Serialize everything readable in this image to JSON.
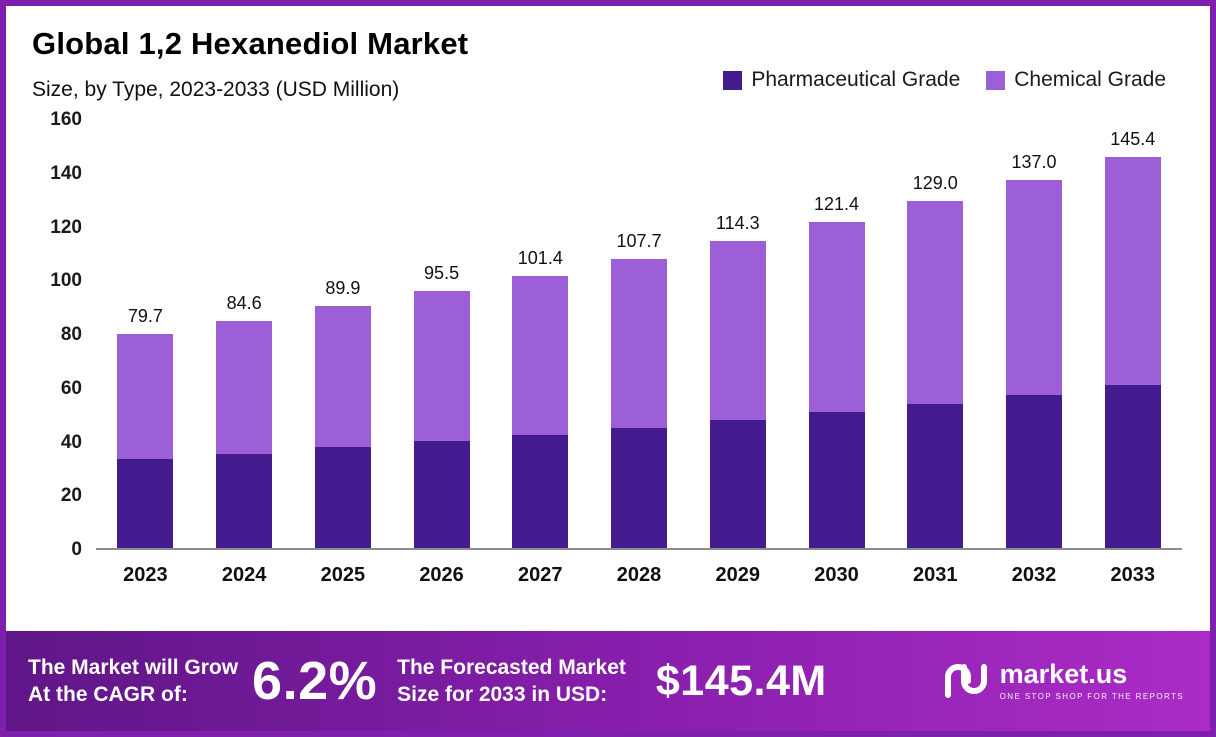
{
  "header": {
    "title": "Global 1,2 Hexanediol Market",
    "subtitle": "Size, by Type, 2023-2033 (USD Million)"
  },
  "legend": [
    {
      "label": "Pharmaceutical Grade",
      "color": "#441b8e"
    },
    {
      "label": "Chemical Grade",
      "color": "#9c5fd8"
    }
  ],
  "chart_data": {
    "type": "bar",
    "stacked": true,
    "title": "Global 1,2 Hexanediol Market Size, by Type, 2023-2033 (USD Million)",
    "categories": [
      "2023",
      "2024",
      "2025",
      "2026",
      "2027",
      "2028",
      "2029",
      "2030",
      "2031",
      "2032",
      "2033"
    ],
    "series": [
      {
        "name": "Pharmaceutical Grade",
        "color": "#441b8e",
        "values": [
          33.0,
          35.0,
          37.5,
          40.0,
          42.0,
          44.5,
          47.5,
          50.5,
          53.5,
          57.0,
          60.5
        ]
      },
      {
        "name": "Chemical Grade",
        "color": "#9c5fd8",
        "values": [
          46.7,
          49.6,
          52.4,
          55.5,
          59.4,
          63.2,
          66.8,
          70.9,
          75.5,
          80.0,
          84.9
        ]
      }
    ],
    "totals": [
      79.7,
      84.6,
      89.9,
      95.5,
      101.4,
      107.7,
      114.3,
      121.4,
      129.0,
      137.0,
      145.4
    ],
    "total_labels": [
      "79.7",
      "84.6",
      "89.9",
      "95.5",
      "101.4",
      "107.7",
      "114.3",
      "121.4",
      "129.0",
      "137.0",
      "145.4"
    ],
    "xlabel": "",
    "ylabel": "",
    "ylim": [
      0,
      160
    ],
    "ytick_step": 20,
    "grid": false,
    "legend_position": "top-right"
  },
  "banner": {
    "grow_line1": "The Market will Grow",
    "grow_line2": "At the CAGR of:",
    "cagr_value": "6.2%",
    "forecast_line1": "The Forecasted Market",
    "forecast_line2": "Size for 2033 in USD:",
    "forecast_value": "$145.4M",
    "logo_text": "market.us",
    "logo_tagline": "ONE STOP SHOP FOR THE REPORTS"
  },
  "colors": {
    "border": "#7e1fae",
    "banner_gradient_start": "#5f1687",
    "banner_gradient_end": "#ab2cc6",
    "axis_line": "#8c8c8c"
  }
}
